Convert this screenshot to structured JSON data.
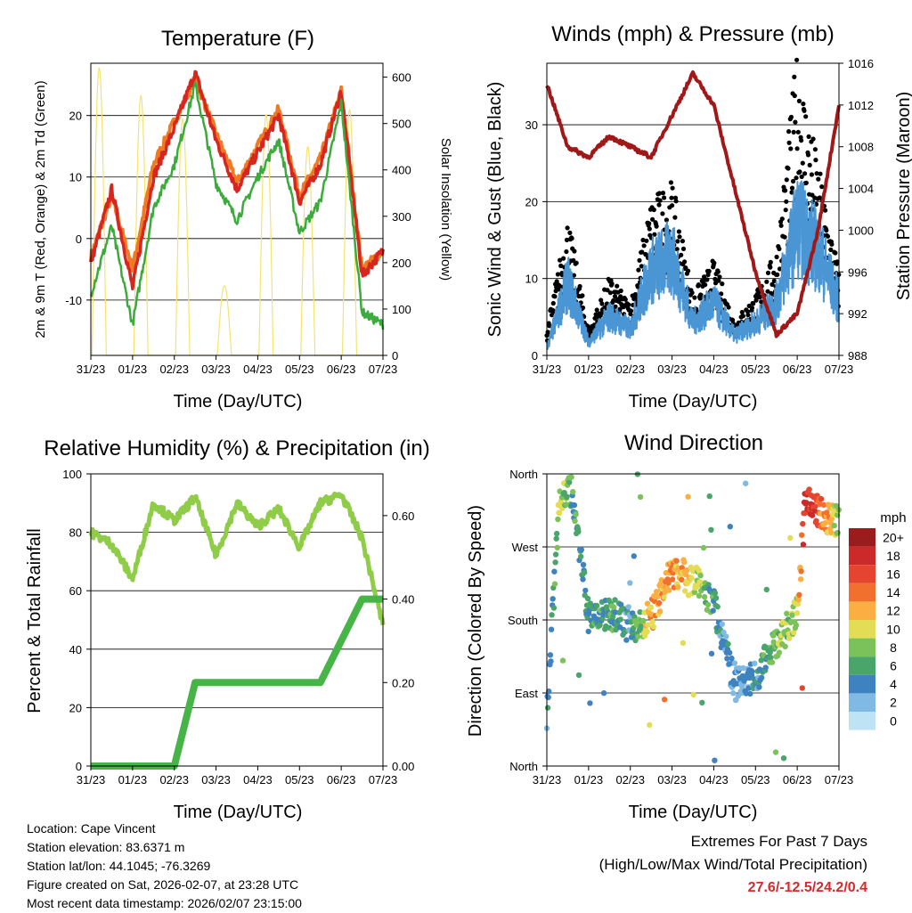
{
  "footer": {
    "location": "Location: Cape Vincent",
    "elevation": "Station elevation: 83.6371 m",
    "latlon": "Station lat/lon: 44.1045; -76.3269",
    "created": "Figure created on Sat, 2026-02-07, at 23:28 UTC",
    "recent": "Most recent data timestamp: 2026/02/07 23:15:00"
  },
  "extremes": {
    "title": "Extremes For Past 7 Days",
    "subtitle": "(High/Low/Max Wind/Total Precipitation)",
    "values": "27.6/-12.5/24.2/0.4"
  },
  "colors": {
    "red": "#d62620",
    "orange": "#f07a22",
    "green": "#3bab3b",
    "yellow": "#f5e36e",
    "black": "#000000",
    "blue": "#4a96d4",
    "maroon": "#a01818",
    "rh": "#8fcc48",
    "precip": "#46b446"
  },
  "chart_data": [
    {
      "type": "line",
      "title": "Temperature (F)",
      "xlabel": "Time (Day/UTC)",
      "ylabel": "2m & 9m T (Red, Orange) & 2m Td (Green)",
      "y2label": "Solar Insolation (Yellow)",
      "x": [
        0,
        0.5,
        1,
        1.5,
        2,
        2.5,
        3,
        3.5,
        4,
        4.5,
        5,
        5.5,
        6,
        6.5,
        7
      ],
      "xticks": [
        "31/23",
        "01/23",
        "02/23",
        "03/23",
        "04/23",
        "05/23",
        "06/23",
        "07/23"
      ],
      "ylim": [
        -19,
        28.5
      ],
      "yticks": [
        -10,
        0,
        10,
        20
      ],
      "y2lim": [
        0,
        630
      ],
      "y2ticks": [
        0,
        100,
        200,
        300,
        400,
        500,
        600
      ],
      "series": [
        {
          "name": "2m T",
          "color": "red",
          "values": [
            -4,
            8,
            -8,
            10,
            18,
            27,
            16,
            8,
            14,
            20,
            6,
            12,
            24,
            -6,
            -2
          ]
        },
        {
          "name": "9m T",
          "color": "orange",
          "values": [
            -3,
            7,
            -5,
            12,
            19,
            26,
            17,
            9,
            15,
            21,
            7,
            13,
            24,
            -5,
            -2
          ]
        },
        {
          "name": "2m Td",
          "color": "green",
          "values": [
            -9,
            2,
            -14,
            5,
            12,
            25,
            9,
            3,
            10,
            16,
            1,
            6,
            22,
            -12,
            -14
          ]
        }
      ],
      "solar": {
        "name": "Solar Insolation",
        "color": "yellow",
        "peaks_day": [
          0.2,
          1.2,
          2.2,
          3.2,
          4.2,
          5.2,
          6.2
        ],
        "peak_values": [
          620,
          560,
          510,
          150,
          520,
          450,
          530
        ]
      }
    },
    {
      "type": "line",
      "title": "Winds (mph) & Pressure (mb)",
      "xlabel": "Time (Day/UTC)",
      "ylabel": "Sonic Wind & Gust (Blue, Black)",
      "y2label": "Station Pressure (Maroon)",
      "x": [
        0,
        0.5,
        1,
        1.5,
        2,
        2.5,
        3,
        3.5,
        4,
        4.5,
        5,
        5.5,
        6,
        6.5,
        7
      ],
      "xticks": [
        "31/23",
        "01/23",
        "02/23",
        "03/23",
        "04/23",
        "05/23",
        "06/23",
        "07/23"
      ],
      "ylim": [
        0,
        38
      ],
      "yticks": [
        0,
        10,
        20,
        30
      ],
      "y2lim": [
        988,
        1016
      ],
      "y2ticks": [
        988,
        992,
        996,
        1000,
        1004,
        1008,
        1012,
        1016
      ],
      "series": [
        {
          "name": "Sonic Wind",
          "color": "blue",
          "values": [
            1,
            11,
            2,
            6,
            4,
            13,
            15,
            5,
            8,
            3,
            5,
            8,
            20,
            16,
            8
          ]
        },
        {
          "name": "Gust",
          "color": "black",
          "values": [
            3,
            16,
            3,
            9,
            6,
            18,
            20,
            7,
            11,
            4,
            7,
            12,
            35,
            22,
            10
          ]
        },
        {
          "name": "Pressure",
          "color": "maroon",
          "values": [
            1014,
            1008,
            1007,
            1009,
            1008,
            1007,
            1011,
            1015,
            1012,
            1004,
            996,
            990,
            992,
            1000,
            1012
          ]
        }
      ]
    },
    {
      "type": "line",
      "title": "Relative Humidity (%) & Precipitation (in)",
      "xlabel": "Time (Day/UTC)",
      "ylabel": "Percent & Total Rainfall",
      "x": [
        0,
        0.5,
        1,
        1.5,
        2,
        2.5,
        3,
        3.5,
        4,
        4.5,
        5,
        5.5,
        6,
        6.5,
        7
      ],
      "xticks": [
        "31/23",
        "01/23",
        "02/23",
        "03/23",
        "04/23",
        "05/23",
        "06/23",
        "07/23"
      ],
      "ylim": [
        0,
        100
      ],
      "yticks": [
        0,
        20,
        40,
        60,
        80,
        100
      ],
      "y2lim": [
        0,
        0.7
      ],
      "y2ticks": [
        "0.00",
        "0.20",
        "0.40",
        "0.60"
      ],
      "series": [
        {
          "name": "RH",
          "color": "rh",
          "values": [
            80,
            76,
            64,
            90,
            84,
            92,
            72,
            90,
            82,
            88,
            75,
            90,
            93,
            78,
            48
          ]
        },
        {
          "name": "Precipitation",
          "color": "precip",
          "values": [
            0,
            0,
            0,
            0,
            0,
            0.2,
            0.2,
            0.2,
            0.2,
            0.2,
            0.2,
            0.2,
            0.3,
            0.4,
            0.4
          ]
        }
      ]
    },
    {
      "type": "scatter",
      "title": "Wind Direction",
      "xlabel": "Time (Day/UTC)",
      "ylabel": "Direction (Colored By Speed)",
      "xticks": [
        "31/23",
        "01/23",
        "02/23",
        "03/23",
        "04/23",
        "05/23",
        "06/23",
        "07/23"
      ],
      "yticks": [
        "North",
        "East",
        "South",
        "West",
        "North"
      ],
      "ylim": [
        0,
        360
      ],
      "colorbar": {
        "title": "mph",
        "labels": [
          "20+",
          "18",
          "16",
          "14",
          "12",
          "10",
          "8",
          "6",
          "4",
          "2",
          "0"
        ],
        "colors": [
          "#9b1c1c",
          "#cc2a2a",
          "#e54530",
          "#f2702e",
          "#fbae42",
          "#e3dc55",
          "#7cc25a",
          "#4aa56a",
          "#3f82c0",
          "#7fb9e4",
          "#bde3f5"
        ]
      }
    }
  ]
}
